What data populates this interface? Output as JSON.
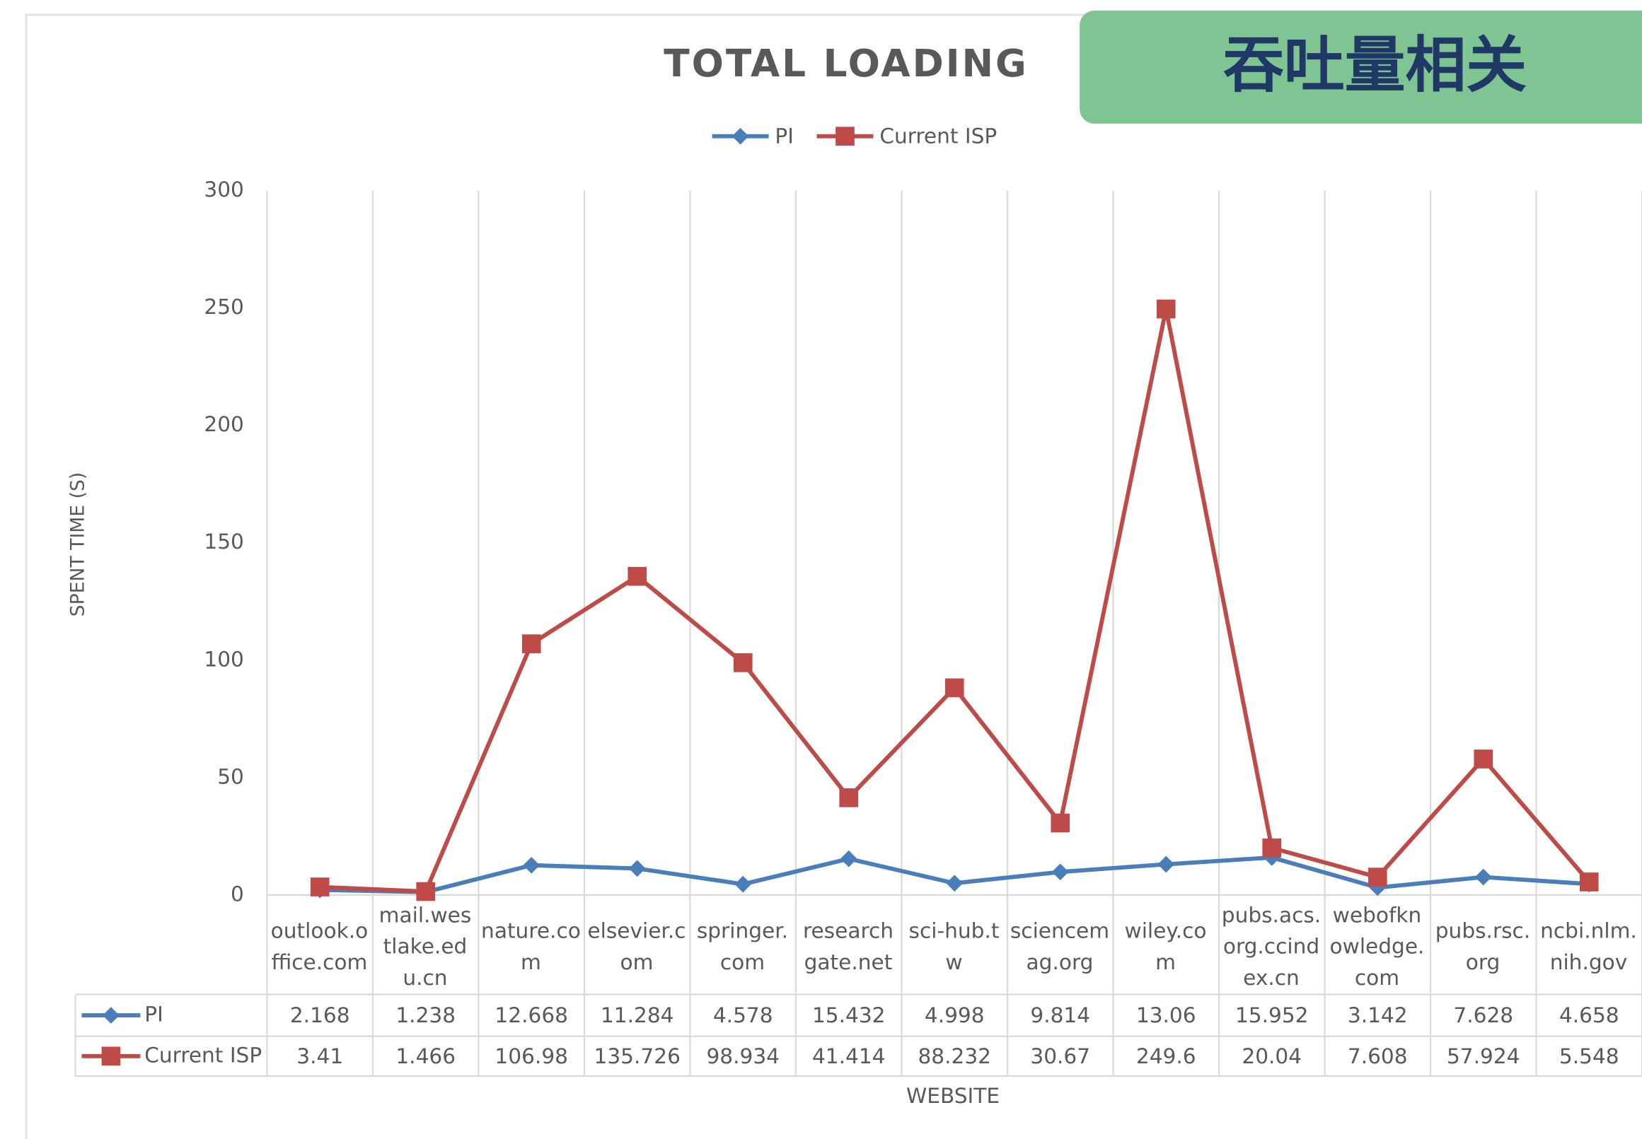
{
  "banner": "吞吐量相关",
  "chart_data": {
    "type": "line",
    "title": "TOTAL  LOADING",
    "x_label": "WEBSITE",
    "y_label": "SPENT TIME (S)",
    "categories": [
      "outlook.office.com",
      "mail.westlake.edu.cn",
      "nature.com",
      "elsevier.com",
      "springer.com",
      "researchgate.net",
      "sci-hub.tw",
      "sciencemag.org",
      "wiley.com",
      "pubs.acs.org.ccindex.cn",
      "webofknowledge.com",
      "pubs.rsc.org",
      "ncbi.nlm.nih.gov"
    ],
    "series": [
      {
        "name": "PI",
        "color": "#4a7ebb",
        "marker": "diamond",
        "values": [
          2.168,
          1.238,
          12.668,
          11.284,
          4.578,
          15.432,
          4.998,
          9.814,
          13.06,
          15.952,
          3.142,
          7.628,
          4.658
        ]
      },
      {
        "name": "Current ISP",
        "color": "#be4b48",
        "marker": "square",
        "values": [
          3.41,
          1.466,
          106.98,
          135.726,
          98.934,
          41.414,
          88.232,
          30.67,
          249.6,
          20.04,
          7.608,
          57.924,
          5.548
        ]
      }
    ],
    "ylim": [
      0,
      300
    ],
    "yticks": [
      0,
      50,
      100,
      150,
      200,
      250,
      300
    ],
    "legend": "top",
    "data_table": true
  }
}
